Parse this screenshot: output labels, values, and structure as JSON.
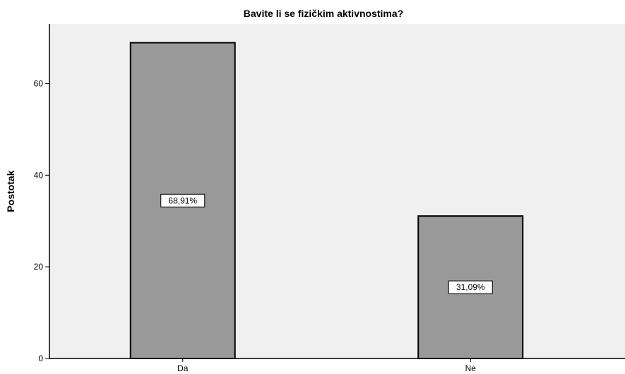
{
  "chart_data": {
    "type": "bar",
    "title": "Bavite li se fizičkim aktivnostima?",
    "xlabel": "",
    "ylabel": "Postotak",
    "categories": [
      "Da",
      "Ne"
    ],
    "values": [
      68.91,
      31.09
    ],
    "data_labels": [
      "68,91%",
      "31,09%"
    ],
    "ylim": [
      0,
      73
    ],
    "yticks": [
      0,
      20,
      40,
      60
    ],
    "grid": false,
    "legend": "none",
    "colors": {
      "plot_background": "#f0f0f0",
      "bar_fill": "#999999",
      "bar_stroke": "#000000"
    }
  }
}
